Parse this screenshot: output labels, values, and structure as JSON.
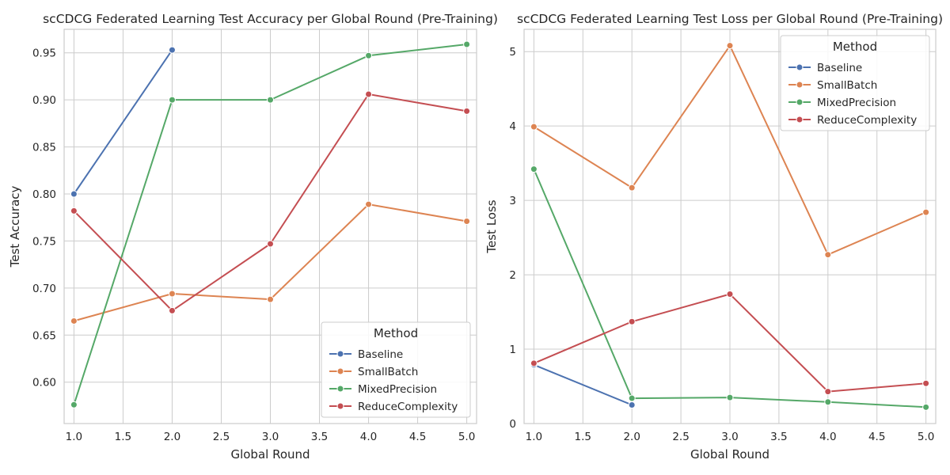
{
  "colors": {
    "grid": "#cccccc",
    "Baseline": "#4c72b0",
    "SmallBatch": "#dd8452",
    "MixedPrecision": "#55a868",
    "ReduceComplexity": "#c44e52"
  },
  "chart_data": [
    {
      "type": "line",
      "title": "scCDCG Federated Learning Test Accuracy per Global Round (Pre-Training)",
      "xlabel": "Global Round",
      "ylabel": "Test Accuracy",
      "xlim": [
        0.9,
        5.1
      ],
      "ylim": [
        0.556,
        0.975
      ],
      "xticks": [
        1.0,
        1.5,
        2.0,
        2.5,
        3.0,
        3.5,
        4.0,
        4.5,
        5.0
      ],
      "xtick_labels": [
        "1.0",
        "1.5",
        "2.0",
        "2.5",
        "3.0",
        "3.5",
        "4.0",
        "4.5",
        "5.0"
      ],
      "yticks": [
        0.6,
        0.65,
        0.7,
        0.75,
        0.8,
        0.85,
        0.9,
        0.95
      ],
      "ytick_labels": [
        "0.60",
        "0.65",
        "0.70",
        "0.75",
        "0.80",
        "0.85",
        "0.90",
        "0.95"
      ],
      "grid": true,
      "legend": {
        "title": "Method",
        "placement": "lower-right"
      },
      "series": [
        {
          "name": "Baseline",
          "x": [
            1,
            2
          ],
          "y": [
            0.8,
            0.953
          ]
        },
        {
          "name": "SmallBatch",
          "x": [
            1,
            2,
            3,
            4,
            5
          ],
          "y": [
            0.665,
            0.694,
            0.688,
            0.789,
            0.771
          ]
        },
        {
          "name": "MixedPrecision",
          "x": [
            1,
            2,
            3,
            4,
            5
          ],
          "y": [
            0.576,
            0.9,
            0.9,
            0.947,
            0.959
          ]
        },
        {
          "name": "ReduceComplexity",
          "x": [
            1,
            2,
            3,
            4,
            5
          ],
          "y": [
            0.782,
            0.676,
            0.747,
            0.906,
            0.888
          ]
        }
      ]
    },
    {
      "type": "line",
      "title": "scCDCG Federated Learning Test Loss per Global Round (Pre-Training)",
      "xlabel": "Global Round",
      "ylabel": "Test Loss",
      "xlim": [
        0.9,
        5.1
      ],
      "ylim": [
        0,
        5.3
      ],
      "xticks": [
        1.0,
        1.5,
        2.0,
        2.5,
        3.0,
        3.5,
        4.0,
        4.5,
        5.0
      ],
      "xtick_labels": [
        "1.0",
        "1.5",
        "2.0",
        "2.5",
        "3.0",
        "3.5",
        "4.0",
        "4.5",
        "5.0"
      ],
      "yticks": [
        0,
        1,
        2,
        3,
        4,
        5
      ],
      "ytick_labels": [
        "0",
        "1",
        "2",
        "3",
        "4",
        "5"
      ],
      "grid": true,
      "legend": {
        "title": "Method",
        "placement": "upper-right"
      },
      "series": [
        {
          "name": "Baseline",
          "x": [
            1,
            2
          ],
          "y": [
            0.79,
            0.25
          ]
        },
        {
          "name": "SmallBatch",
          "x": [
            1,
            2,
            3,
            4,
            5
          ],
          "y": [
            3.99,
            3.17,
            5.08,
            2.27,
            2.84
          ]
        },
        {
          "name": "MixedPrecision",
          "x": [
            1,
            2,
            3,
            4,
            5
          ],
          "y": [
            3.42,
            0.34,
            0.35,
            0.29,
            0.22
          ]
        },
        {
          "name": "ReduceComplexity",
          "x": [
            1,
            2,
            3,
            4,
            5
          ],
          "y": [
            0.81,
            1.37,
            1.74,
            0.43,
            0.54
          ]
        }
      ]
    }
  ]
}
